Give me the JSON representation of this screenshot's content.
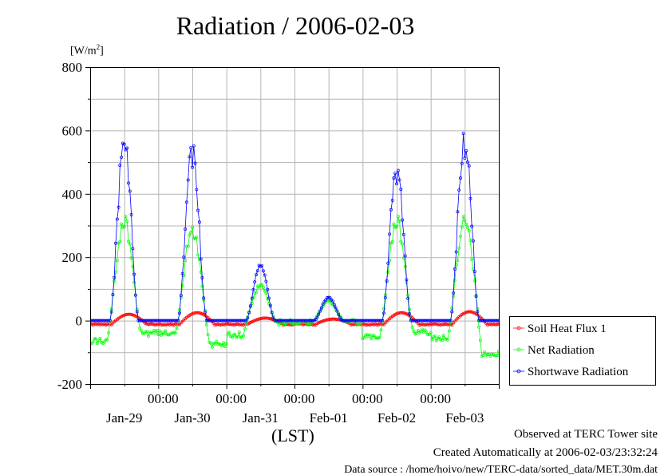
{
  "header": {
    "title": "Radiation / 2006-02-03",
    "unit_prefix": "[W/m",
    "unit_power": "2",
    "unit_suffix": "]"
  },
  "x_axis_title": "(LST)",
  "footer": {
    "line1": "Observed at TERC Tower site",
    "line2": "Created Automatically at 2006-02-03/23:32:24",
    "line3": "Data source : /home/hoivo/new/TERC-data/sorted_data/MET.30m.dat"
  },
  "chart_data": {
    "type": "line",
    "title": "Radiation / 2006-02-03",
    "ylabel": "[W/m2]",
    "xlabel": "(LST)",
    "ylim": [
      -200,
      800
    ],
    "yticks": [
      -200,
      0,
      200,
      400,
      600,
      800
    ],
    "xlim": [
      0,
      6
    ],
    "x_unit": "days since 2006-01-28 00:00 LST",
    "x_time_ticks": [
      "00:00",
      "00:00",
      "00:00",
      "00:00",
      "00:00"
    ],
    "x_time_tick_positions": [
      1,
      2,
      3,
      4,
      5
    ],
    "x_day_labels": [
      "Jan-29",
      "Jan-30",
      "Jan-31",
      "Feb-01",
      "Feb-02",
      "Feb-03"
    ],
    "x_day_label_positions": [
      0.5,
      1.5,
      2.5,
      3.5,
      4.5,
      5.5
    ],
    "grid": true,
    "legend_position": "right",
    "days": [
      {
        "label": "Jan-29",
        "sw_peak": 605,
        "net_peak": 340,
        "soil_peak": 20,
        "net_night_start": -65,
        "net_night_end": -40
      },
      {
        "label": "Jan-30",
        "sw_peak": 570,
        "net_peak": 310,
        "soil_peak": 25,
        "net_night_start": -40,
        "net_night_end": -75
      },
      {
        "label": "Jan-31",
        "sw_peak": 180,
        "net_peak": 120,
        "soil_peak": 8,
        "net_night_start": -45,
        "net_night_end": -5
      },
      {
        "label": "Feb-01",
        "sw_peak": 75,
        "net_peak": 65,
        "soil_peak": 5,
        "net_night_start": -5,
        "net_night_end": -5
      },
      {
        "label": "Feb-02",
        "sw_peak": 510,
        "net_peak": 340,
        "soil_peak": 25,
        "net_night_start": -50,
        "net_night_end": -35
      },
      {
        "label": "Feb-03",
        "sw_peak": 620,
        "net_peak": 350,
        "soil_peak": 28,
        "net_night_start": -55,
        "net_night_end": -105
      }
    ],
    "series": [
      {
        "name": "Soil Heat Flux 1",
        "color": "#ff0000"
      },
      {
        "name": "Net Radiation",
        "color": "#00ff00"
      },
      {
        "name": "Shortwave Radiation",
        "color": "#0000ff"
      }
    ]
  }
}
